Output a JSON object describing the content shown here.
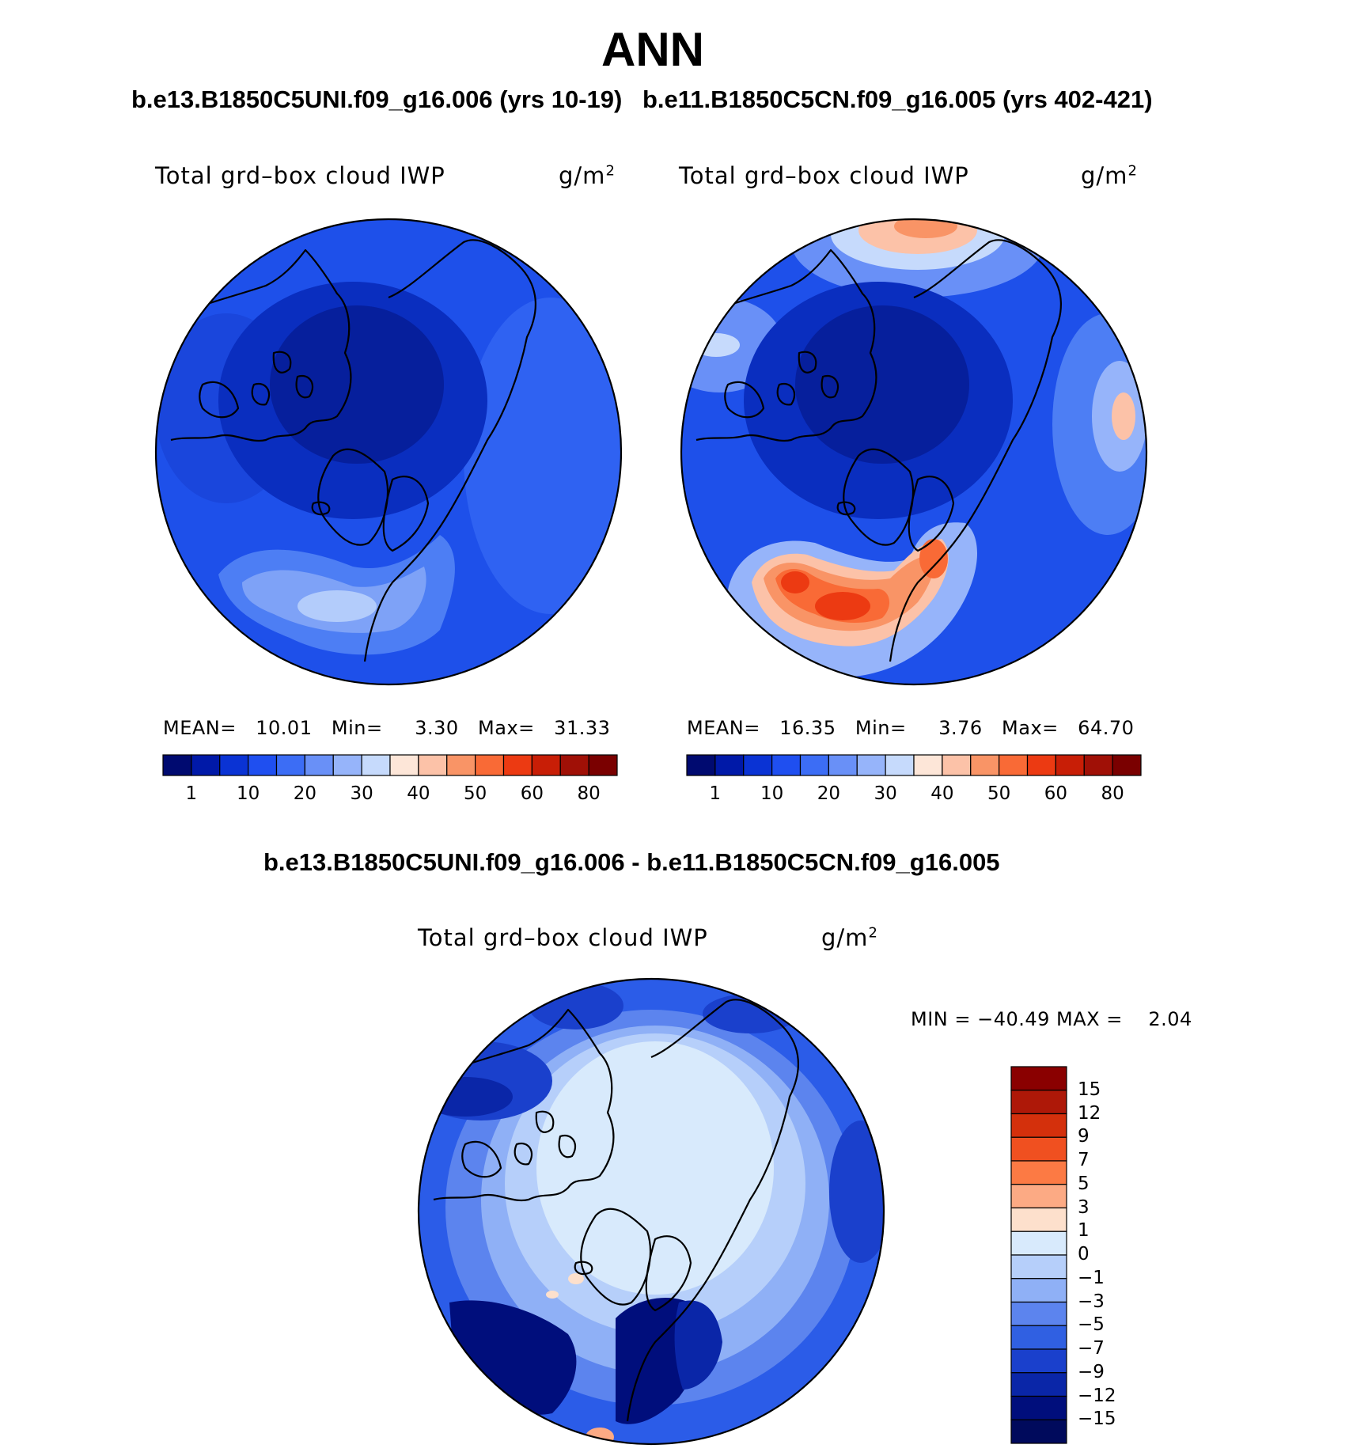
{
  "title": "ANN",
  "panels": [
    {
      "case_title": "b.e13.B1850C5UNI.f09_g16.006 (yrs 10-19)",
      "variable": "Total grd–box cloud IWP",
      "units_base": "g/m",
      "units_exp": "2",
      "stats": {
        "mean_label": "MEAN=",
        "mean": "10.01",
        "min_label": "Min=",
        "min": "3.30",
        "max_label": "Max=",
        "max": "31.33"
      },
      "field_summary": {
        "central_arctic": "1-10",
        "north_atlantic_max": "31.33"
      }
    },
    {
      "case_title": "b.e11.B1850C5CN.f09_g16.005 (yrs 402-421)",
      "variable": "Total grd–box cloud IWP",
      "units_base": "g/m",
      "units_exp": "2",
      "stats": {
        "mean_label": "MEAN=",
        "mean": "16.35",
        "min_label": "Min=",
        "min": "3.76",
        "max_label": "Max=",
        "max": "64.70"
      },
      "field_summary": {
        "central_arctic": "1-10",
        "north_atlantic_max": "64.70"
      }
    }
  ],
  "colorbar_seq": {
    "colors": [
      "#000a70",
      "#0019a8",
      "#0a33d4",
      "#1f4ff0",
      "#3c6df5",
      "#6990f7",
      "#96b4fa",
      "#c6dafc",
      "#fde6d8",
      "#fcc2a8",
      "#f99466",
      "#f96a36",
      "#ec3a12",
      "#c81e06",
      "#a01006",
      "#7a0000"
    ],
    "labels": [
      "1",
      "10",
      "20",
      "30",
      "40",
      "50",
      "60",
      "80"
    ]
  },
  "difference": {
    "title": "b.e13.B1850C5UNI.f09_g16.006 - b.e11.B1850C5CN.f09_g16.005",
    "variable": "Total grd–box cloud IWP",
    "units_base": "g/m",
    "units_exp": "2",
    "minmax": "MIN = −40.49 MAX =    2.04",
    "colorbar": {
      "colors_top_to_bottom": [
        "#8a0000",
        "#ae1808",
        "#d4300c",
        "#f05020",
        "#fc7a44",
        "#fcaa84",
        "#fde0cc",
        "#d8eafc",
        "#b6cffa",
        "#8fb0f6",
        "#5c84ee",
        "#3060e2",
        "#1a40cc",
        "#0a26a8",
        "#000e7c"
      ],
      "labels": [
        "15",
        "12",
        "9",
        "7",
        "5",
        "3",
        "1",
        "0",
        "−1",
        "−3",
        "−5",
        "−7",
        "−9",
        "−12",
        "−15"
      ]
    }
  }
}
